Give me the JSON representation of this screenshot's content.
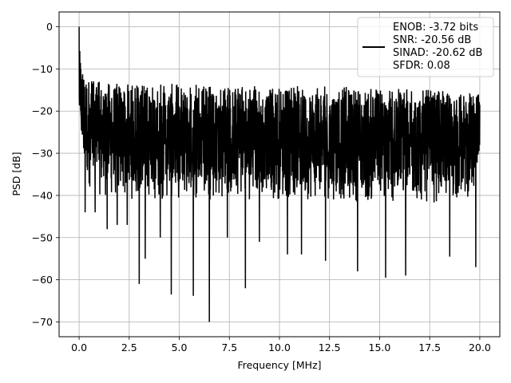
{
  "chart_data": {
    "type": "line",
    "xlabel": "Frequency [MHz]",
    "ylabel": "PSD [dB]",
    "xlim": [
      -1.0,
      21.0
    ],
    "ylim": [
      -73.5,
      3.5
    ],
    "x_ticks": [
      0.0,
      2.5,
      5.0,
      7.5,
      10.0,
      12.5,
      15.0,
      17.5,
      20.0
    ],
    "x_tick_labels": [
      "0.0",
      "2.5",
      "5.0",
      "7.5",
      "10.0",
      "12.5",
      "15.0",
      "17.5",
      "20.0"
    ],
    "y_ticks": [
      0,
      -10,
      -20,
      -30,
      -40,
      -50,
      -60,
      -70
    ],
    "y_tick_labels": [
      "0",
      "−10",
      "−20",
      "−30",
      "−40",
      "−50",
      "−60",
      "−70"
    ],
    "grid": true,
    "legend_position": "top-right",
    "series": [
      {
        "name": "ENOB: -3.72 bits\nSNR: -20.56 dB\nSINAD: -20.62 dB\nSFDR: 0.08",
        "legend_lines": [
          "ENOB: -3.72 bits",
          "SNR: -20.56 dB",
          "SINAD: -20.62 dB",
          "SFDR: 0.08"
        ],
        "color": "#000000",
        "x_range": [
          0.0,
          20.0
        ],
        "peak": {
          "x": 0.0,
          "y": 0.0
        },
        "noise_floor_envelope": {
          "x": [
            0.0,
            0.25,
            0.5,
            1.0,
            2.5,
            5.0,
            7.5,
            10.0,
            12.5,
            15.0,
            17.5,
            20.0
          ],
          "upper": [
            -5,
            -10,
            -12,
            -13,
            -13.5,
            -13.5,
            -14,
            -14,
            -14,
            -14.5,
            -15,
            -16
          ],
          "lower": [
            -25,
            -35,
            -38,
            -40,
            -41,
            -41,
            -41,
            -41,
            -41,
            -42,
            -42,
            -40
          ]
        },
        "deep_dips": [
          {
            "x": 0.3,
            "y": -44
          },
          {
            "x": 0.8,
            "y": -44
          },
          {
            "x": 1.4,
            "y": -48
          },
          {
            "x": 1.9,
            "y": -47
          },
          {
            "x": 2.4,
            "y": -47
          },
          {
            "x": 3.0,
            "y": -61
          },
          {
            "x": 3.3,
            "y": -55
          },
          {
            "x": 4.05,
            "y": -50
          },
          {
            "x": 4.6,
            "y": -63.5
          },
          {
            "x": 5.7,
            "y": -63.8
          },
          {
            "x": 6.5,
            "y": -70
          },
          {
            "x": 7.4,
            "y": -50
          },
          {
            "x": 8.3,
            "y": -62
          },
          {
            "x": 9.0,
            "y": -51
          },
          {
            "x": 10.4,
            "y": -54
          },
          {
            "x": 11.1,
            "y": -54
          },
          {
            "x": 12.3,
            "y": -55.5
          },
          {
            "x": 13.9,
            "y": -58
          },
          {
            "x": 15.3,
            "y": -59.5
          },
          {
            "x": 16.3,
            "y": -59
          },
          {
            "x": 18.5,
            "y": -54.5
          },
          {
            "x": 19.8,
            "y": -57
          }
        ]
      }
    ]
  }
}
